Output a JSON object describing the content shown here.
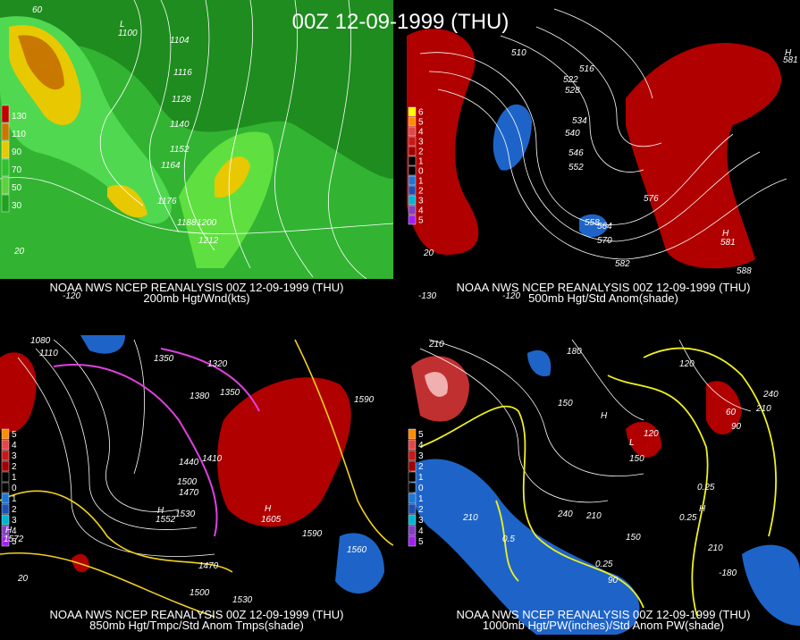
{
  "title": "00Z 12-09-1999 (THU)",
  "panels": [
    {
      "caption": "NOAA NWS NCEP REANALYSIS 00Z 12-09-1999 (THU)",
      "subtitle": "200mb Hgt/Wnd(kts)",
      "legend": [
        "130",
        "110",
        "90",
        "70",
        "50",
        "30"
      ],
      "labels": [
        "1104",
        "1116",
        "1128",
        "1140",
        "1152",
        "1164",
        "1176",
        "1188",
        "1200",
        "1212",
        "L",
        "1100",
        "60",
        "20",
        "-120"
      ]
    },
    {
      "caption": "NOAA NWS NCEP REANALYSIS 00Z 12-09-1999 (THU)",
      "subtitle": "500mb Hgt/Std Anom(shade)",
      "legend": [
        "6",
        "5",
        "4",
        "3",
        "2",
        "1",
        "0",
        "1",
        "2",
        "3",
        "4",
        "5"
      ],
      "labels": [
        "510",
        "516",
        "522",
        "528",
        "534",
        "540",
        "546",
        "552",
        "558",
        "564",
        "570",
        "576",
        "582",
        "588",
        "H",
        "581",
        "H",
        "581",
        "-130",
        "-120",
        "20"
      ]
    },
    {
      "caption": "NOAA NWS NCEP REANALYSIS 00Z 12-09-1999 (THU)",
      "subtitle": "850mb Hgt/Tmpc/Std Anom Tmps(shade)",
      "legend": [
        "5",
        "4",
        "3",
        "2",
        "1",
        "0",
        "1",
        "2",
        "3",
        "4",
        "5"
      ],
      "labels": [
        "1080",
        "1110",
        "1350",
        "1320",
        "1380",
        "1350",
        "1440",
        "1410",
        "1470",
        "1500",
        "1530",
        "1590",
        "1590",
        "1560",
        "1470",
        "1500",
        "1530",
        "H",
        "1572",
        "H",
        "1552",
        "H",
        "1605",
        "20"
      ]
    },
    {
      "caption": "NOAA NWS NCEP REANALYSIS 00Z 12-09-1999 (THU)",
      "subtitle": "1000mb Hgt/PW(inches)/Std Anom PW(shade)",
      "legend": [
        "5",
        "4",
        "3",
        "2",
        "1",
        "0",
        "1",
        "2",
        "3",
        "4",
        "5"
      ],
      "labels": [
        "210",
        "180",
        "150",
        "120",
        "150",
        "120",
        "240",
        "210",
        "90",
        "60",
        "0.25",
        "0.25",
        "0.5",
        "0.25",
        "210",
        "210",
        "240",
        "150",
        "210",
        "-180",
        "90",
        "L",
        "H",
        "H"
      ]
    }
  ]
}
